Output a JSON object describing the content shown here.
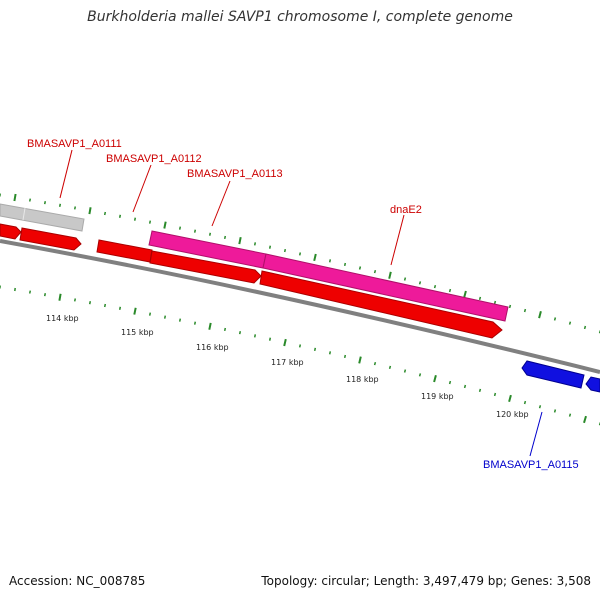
{
  "title": "Burkholderia mallei SAVP1 chromosome I, complete genome",
  "footer": {
    "accession": "Accession: NC_008785",
    "summary": "Topology: circular; Length: 3,497,479 bp; Genes: 3,508"
  },
  "ruler_labels": [
    "114 kbp",
    "115 kbp",
    "116 kbp",
    "117 kbp",
    "118 kbp",
    "119 kbp",
    "120 kbp"
  ],
  "gene_labels": [
    {
      "text": "BMASAVP1_A0111",
      "color": "#cc0000"
    },
    {
      "text": "BMASAVP1_A0112",
      "color": "#cc0000"
    },
    {
      "text": "BMASAVP1_A0113",
      "color": "#cc0000"
    },
    {
      "text": "dnaE2",
      "color": "#cc0000"
    },
    {
      "text": "BMASAVP1_A0115",
      "color": "#0000cc"
    }
  ],
  "colors": {
    "cds_forward": "#ee0000",
    "rna": "#ee1a9a",
    "cds_reverse": "#1010e0",
    "other": "#c8c8c8",
    "backbone": "#808080",
    "ticks": "#2a8a2a"
  }
}
